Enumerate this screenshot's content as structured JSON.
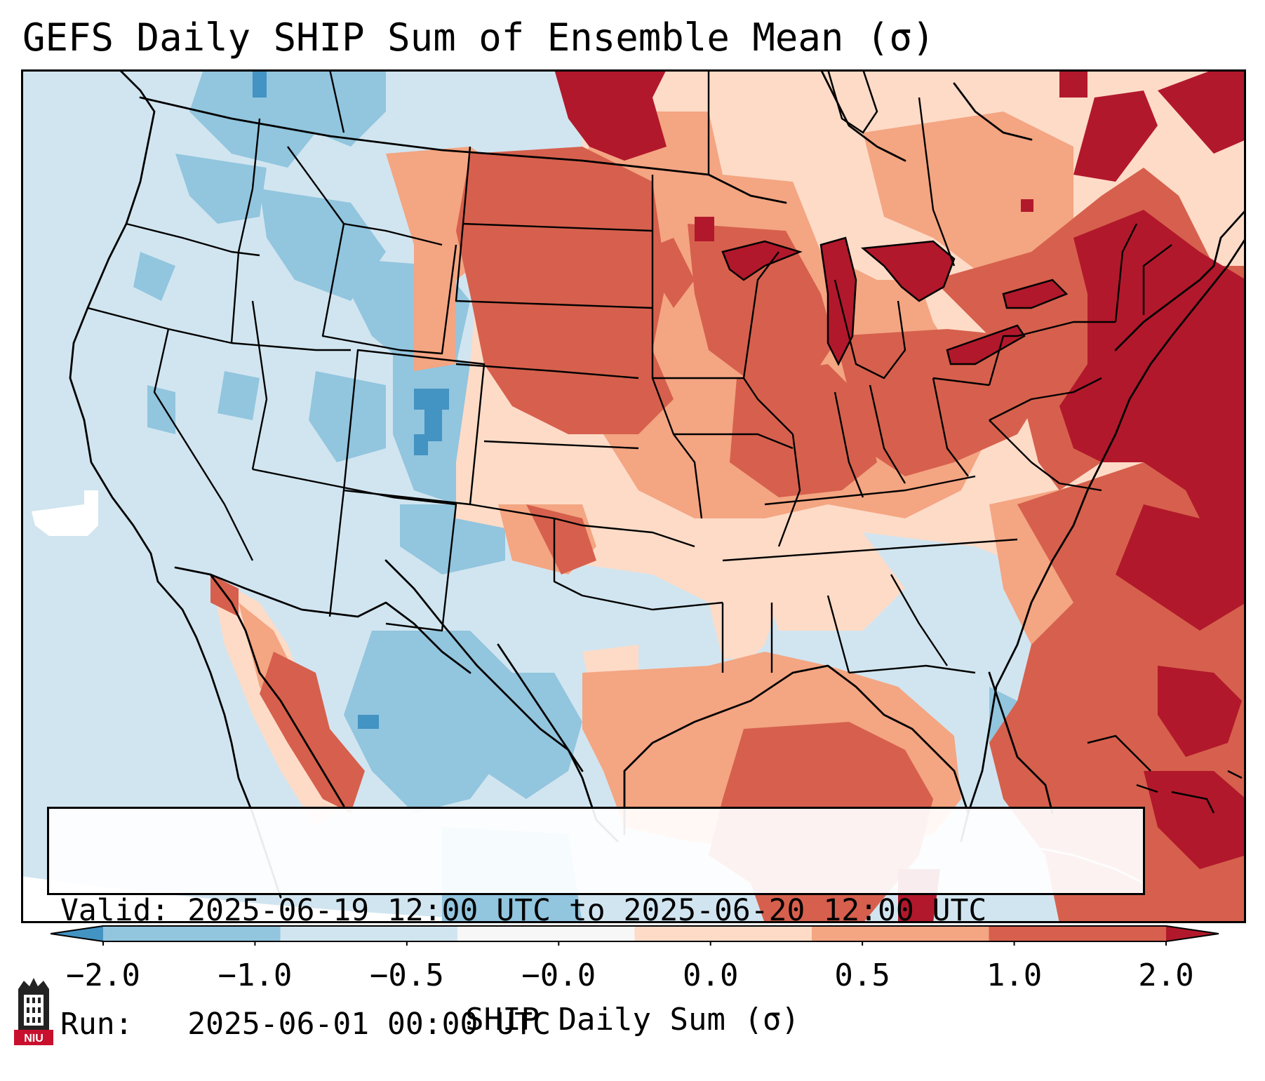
{
  "title": "GEFS Daily SHIP Sum of Ensemble Mean (σ)",
  "info": {
    "valid_label": "Valid:",
    "valid_value": "2025-06-19 12:00 UTC to 2025-06-20 12:00 UTC",
    "run_label": "Run:",
    "run_value": "2025-06-01 00:00 UTC"
  },
  "colorbar": {
    "label": "SHIP Daily Sum (σ)",
    "ticks": [
      "−2.0",
      "−1.0",
      "−0.5",
      "−0.0",
      "0.0",
      "0.5",
      "1.0",
      "2.0"
    ],
    "colors": [
      "#4393c3",
      "#92c5de",
      "#d1e5f0",
      "#f7f7f7",
      "#fddbc7",
      "#f4a582",
      "#d6604d",
      "#b2182b"
    ]
  },
  "logo": {
    "text": "NIU"
  },
  "colors": {
    "strong_neg": "#4393c3",
    "neg": "#92c5de",
    "weak_neg": "#d1e5f0",
    "weak_pos": "#fddbc7",
    "pos": "#f4a582",
    "strong_pos": "#d6604d",
    "very_strong_pos": "#b2182b"
  }
}
